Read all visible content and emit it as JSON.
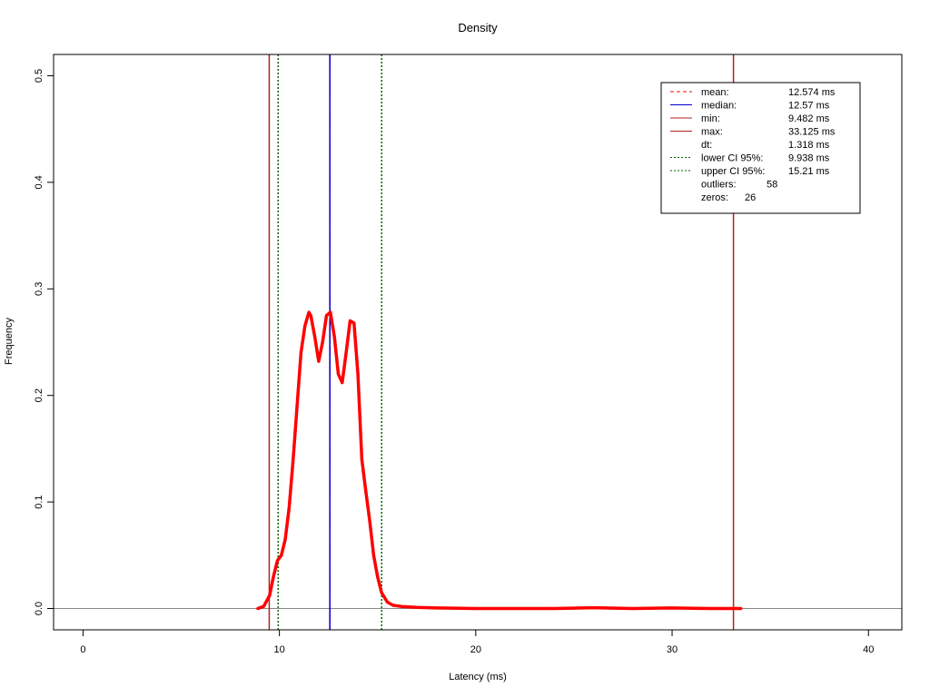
{
  "chart_data": {
    "type": "line",
    "title": "Density",
    "xlabel": "Latency (ms)",
    "ylabel": "Frequency",
    "xlim": [
      -1.5,
      41.7
    ],
    "ylim": [
      -0.02,
      0.52
    ],
    "xticks": [
      0,
      10,
      20,
      30,
      40
    ],
    "yticks": [
      0.0,
      0.1,
      0.2,
      0.3,
      0.4,
      0.5
    ],
    "xtick_labels": [
      "0",
      "10",
      "20",
      "30",
      "40"
    ],
    "ytick_labels": [
      "0.0",
      "0.1",
      "0.2",
      "0.3",
      "0.4",
      "0.5"
    ],
    "baseline": 0.0,
    "series": [
      {
        "color": "#ff0000",
        "x": [
          8.9,
          9.2,
          9.5,
          9.7,
          9.9,
          10.1,
          10.3,
          10.5,
          10.7,
          10.9,
          11.1,
          11.3,
          11.5,
          11.6,
          11.8,
          12.0,
          12.2,
          12.4,
          12.6,
          12.8,
          13.0,
          13.2,
          13.4,
          13.6,
          13.8,
          14.0,
          14.2,
          14.4,
          14.6,
          14.8,
          15.0,
          15.2,
          15.5,
          15.8,
          16.2,
          16.6,
          17.0,
          18.0,
          20.0,
          24.0,
          26.0,
          28.0,
          30.0,
          32.0,
          33.5
        ],
        "y": [
          0.0,
          0.002,
          0.012,
          0.03,
          0.045,
          0.05,
          0.065,
          0.095,
          0.14,
          0.19,
          0.24,
          0.265,
          0.278,
          0.275,
          0.255,
          0.232,
          0.25,
          0.275,
          0.278,
          0.255,
          0.22,
          0.212,
          0.24,
          0.27,
          0.268,
          0.22,
          0.14,
          0.11,
          0.082,
          0.05,
          0.03,
          0.015,
          0.006,
          0.003,
          0.002,
          0.0015,
          0.001,
          0.0005,
          0.0,
          0.0,
          0.0008,
          0.0,
          0.0005,
          0.0,
          0.0
        ]
      }
    ],
    "vertical_lines": [
      {
        "name": "mean",
        "x": 12.574,
        "color": "#ff0000",
        "style": "dashed"
      },
      {
        "name": "median",
        "x": 12.57,
        "color": "#0000cc",
        "style": "solid"
      },
      {
        "name": "min",
        "x": 9.482,
        "color": "#b22222",
        "style": "solid"
      },
      {
        "name": "max",
        "x": 33.125,
        "color": "#b22222",
        "style": "solid"
      },
      {
        "name": "lower-ci",
        "x": 9.938,
        "color": "#006400",
        "style": "dotted"
      },
      {
        "name": "upper-ci",
        "x": 15.21,
        "color": "#006400",
        "style": "dotted"
      }
    ],
    "legend": {
      "position": "top-right",
      "entries": [
        {
          "label": "mean:",
          "value": "12.574 ms",
          "line_color": "#ff0000",
          "line_style": "dashed"
        },
        {
          "label": "median:",
          "value": "12.57 ms",
          "line_color": "#0000cc",
          "line_style": "solid"
        },
        {
          "label": "min:",
          "value": "9.482 ms",
          "line_color": "#b22222",
          "line_style": "solid"
        },
        {
          "label": "max:",
          "value": "33.125 ms",
          "line_color": "#b22222",
          "line_style": "solid"
        },
        {
          "label": "dt:",
          "value": "1.318 ms",
          "line_color": "",
          "line_style": "none"
        },
        {
          "label": "lower CI 95%:",
          "value": "9.938 ms",
          "line_color": "#006400",
          "line_style": "dotted"
        },
        {
          "label": "upper CI 95%:",
          "value": "15.21 ms",
          "line_color": "#006400",
          "line_style": "dotted"
        },
        {
          "label": "outliers:",
          "value": "58",
          "line_color": "",
          "line_style": "none"
        },
        {
          "label": "zeros:",
          "value": "26",
          "line_color": "",
          "line_style": "none"
        }
      ]
    }
  }
}
